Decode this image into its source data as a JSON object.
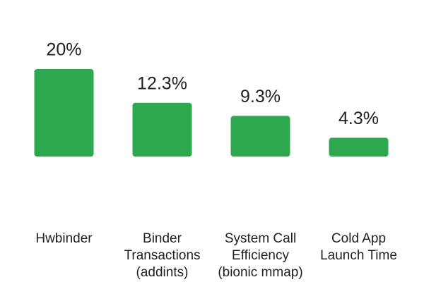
{
  "chart_data": {
    "type": "bar",
    "categories": [
      [
        "Hwbinder"
      ],
      [
        "Binder",
        "Transactions",
        "(addints)"
      ],
      [
        "System Call",
        "Efficiency",
        "(bionic mmap)"
      ],
      [
        "Cold App",
        "Launch Time"
      ]
    ],
    "values": [
      20,
      12.3,
      9.3,
      4.3
    ],
    "value_labels": [
      "20%",
      "12.3%",
      "9.3%",
      "4.3%"
    ],
    "color": "#2ea84e",
    "ylim": [
      -14,
      20
    ]
  }
}
